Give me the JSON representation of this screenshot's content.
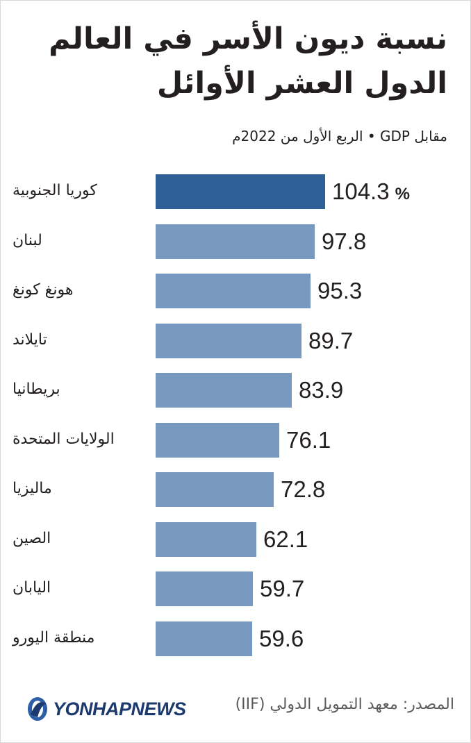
{
  "title_line1": "نسبة ديون الأسر في العالم",
  "title_line2": "الدول العشر الأوائل",
  "subtitle": "مقابل GDP • الربع الأول من 2022م",
  "colors": {
    "bar": "#7799c0",
    "highlight": "#2f5f97",
    "text": "#231f20"
  },
  "chart_data": {
    "type": "bar",
    "orientation": "horizontal",
    "unit": "%",
    "categories": [
      "كوريا الجنوبية",
      "لبنان",
      "هونغ كونغ",
      "تايلاند",
      "بريطانيا",
      "الولايات المتحدة",
      "ماليزيا",
      "الصين",
      "اليابان",
      "منطقة اليورو"
    ],
    "values": [
      104.3,
      97.8,
      95.3,
      89.7,
      83.9,
      76.1,
      72.8,
      62.1,
      59.7,
      59.6
    ],
    "value_labels": [
      "104.3",
      "97.8",
      "95.3",
      "89.7",
      "83.9",
      "76.1",
      "72.8",
      "62.1",
      "59.7",
      "59.6"
    ],
    "highlight_index": 0
  },
  "logo": {
    "text": "YONHAPNEWS",
    "icon": "yonhap-logo-icon"
  },
  "source": "المصدر: معهد التمويل الدولي (IIF)"
}
